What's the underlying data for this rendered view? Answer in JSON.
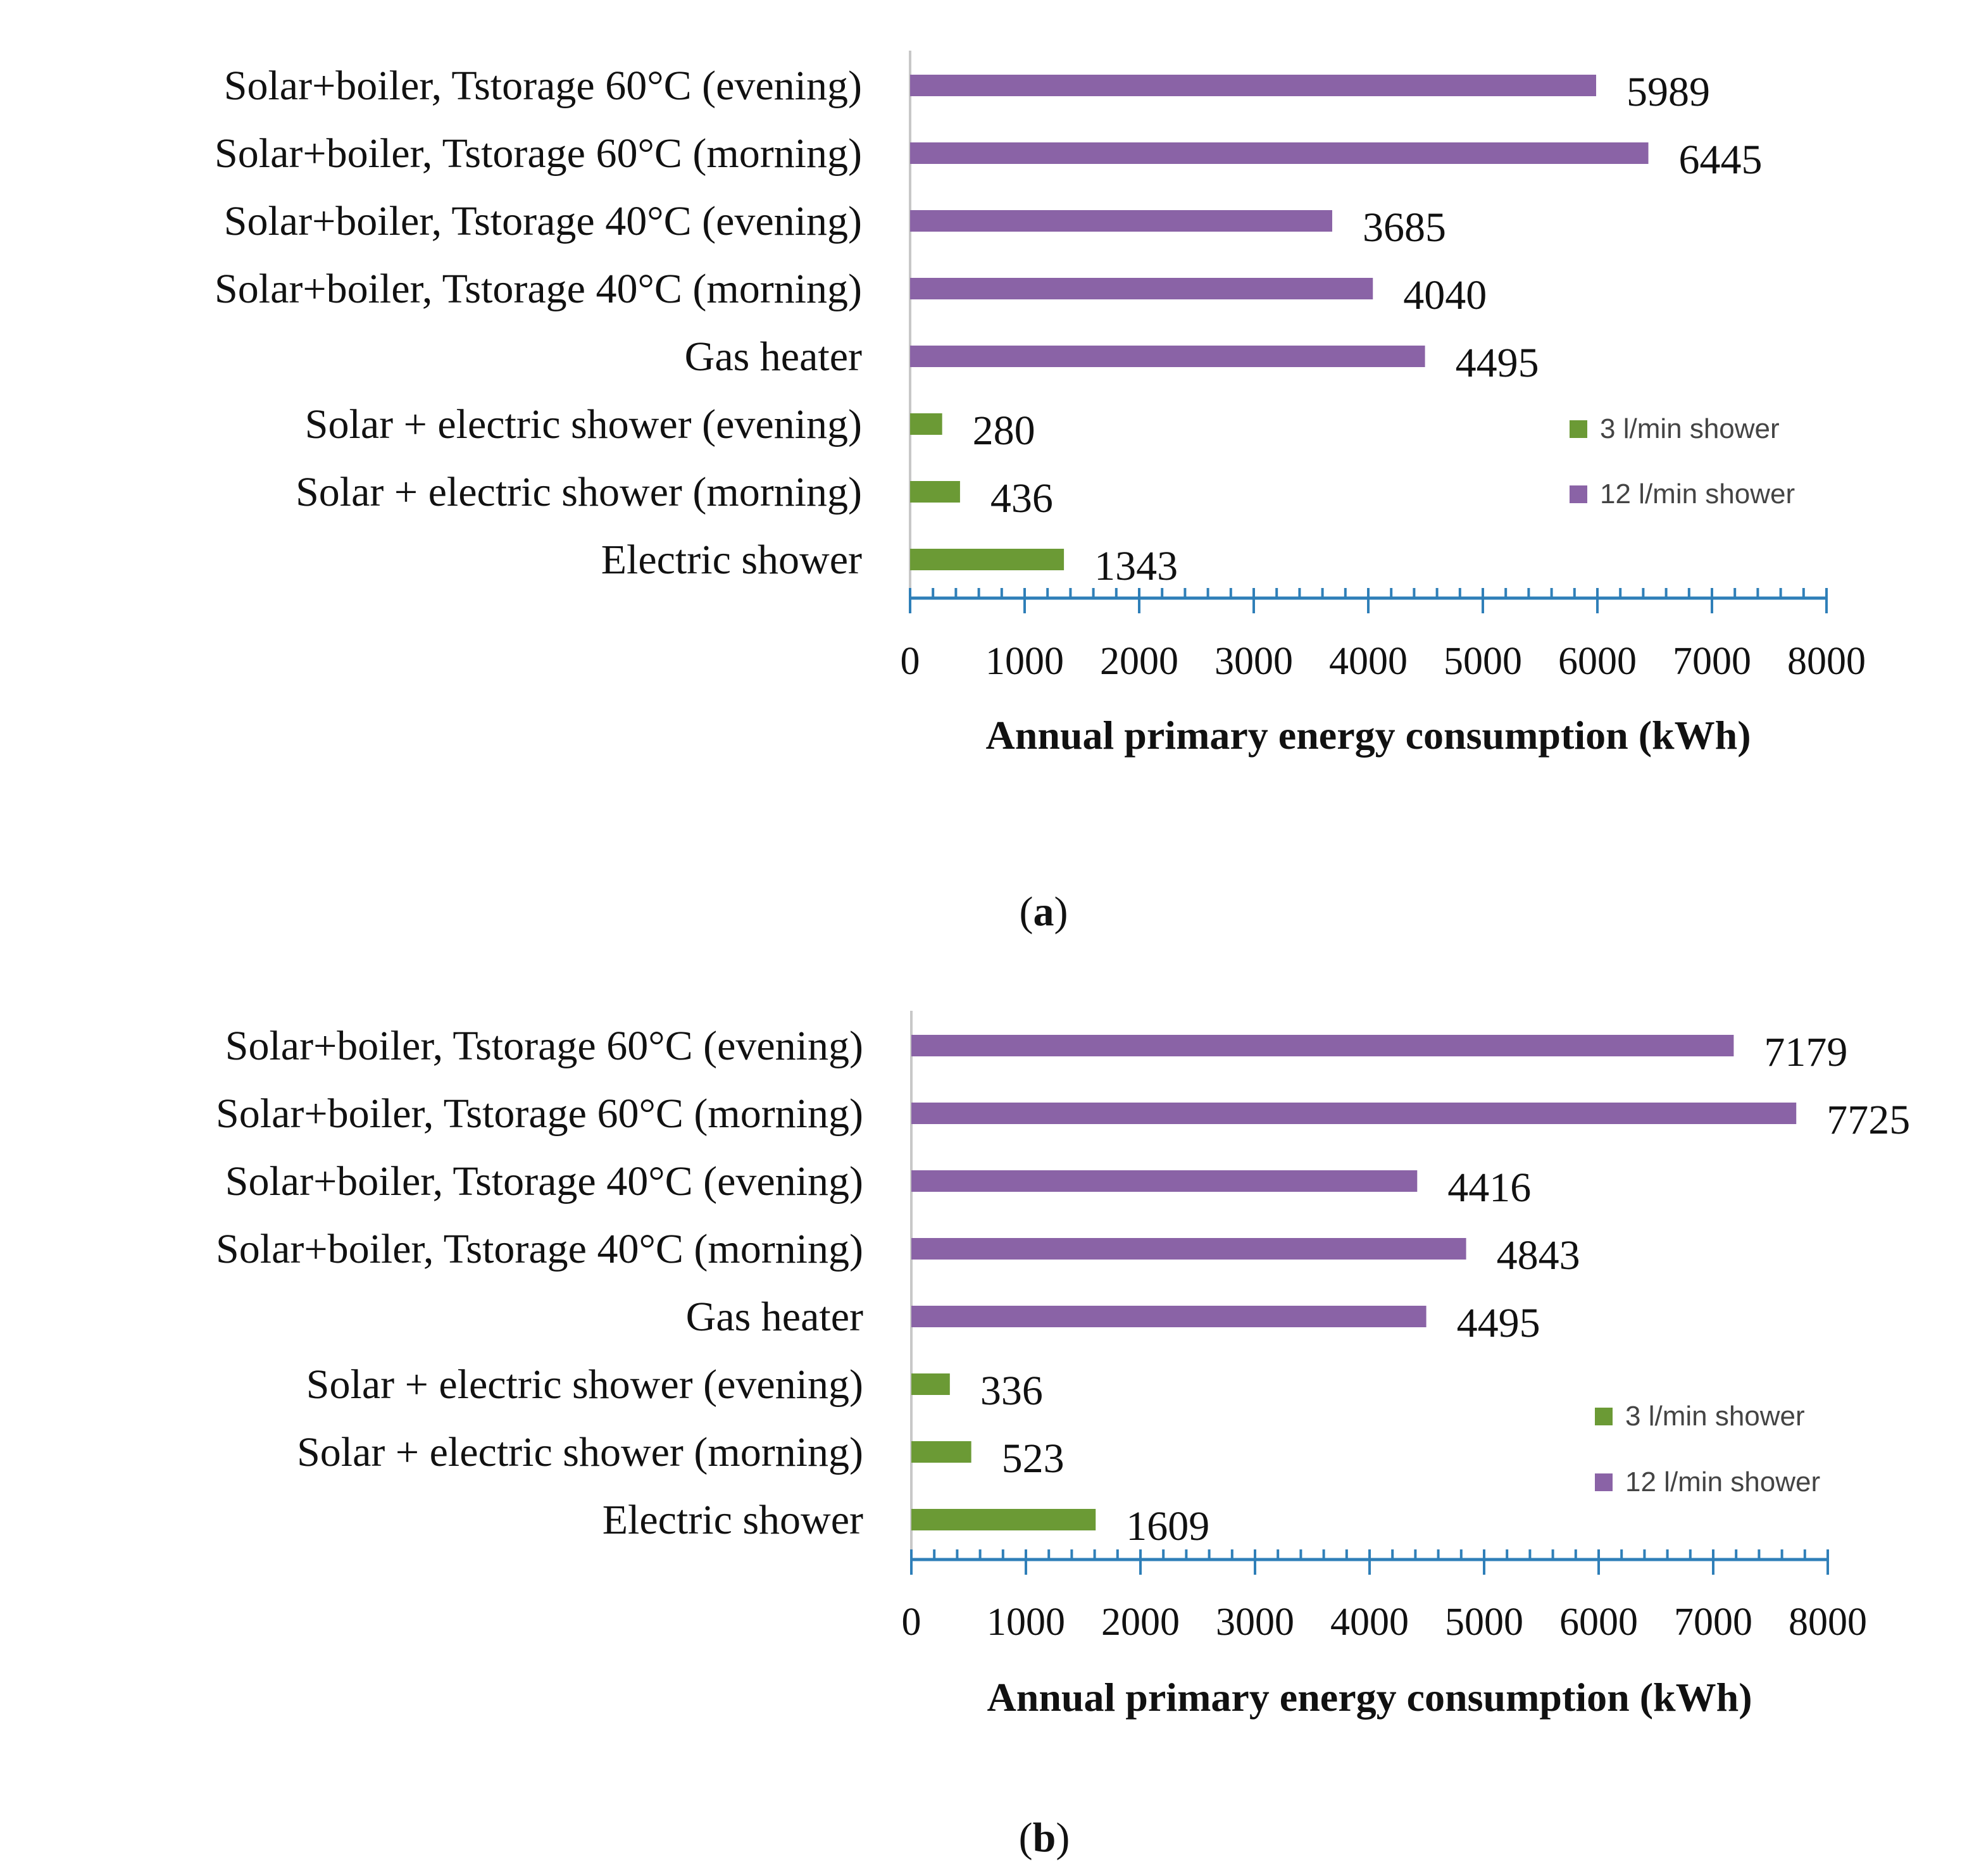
{
  "colors": {
    "green": "#6B9A35",
    "purple": "#8A63A6",
    "axis": "#2F7FB8",
    "baseline": "#C8C8C8"
  },
  "chart_data": [
    {
      "type": "bar",
      "orientation": "horizontal",
      "panel_label": "a",
      "xlabel": "Annual primary energy consumption (kWh)",
      "xlim": [
        0,
        8000
      ],
      "xticks": [
        "0",
        "1000",
        "2000",
        "3000",
        "4000",
        "5000",
        "6000",
        "7000",
        "8000"
      ],
      "legend": {
        "position": "right",
        "entries": [
          "3 l/min shower",
          "12 l/min shower"
        ]
      },
      "bars": [
        {
          "label": "Solar+boiler, Tstorage 60°C (evening)",
          "value": 5989,
          "series": "12 l/min shower"
        },
        {
          "label": "Solar+boiler, Tstorage 60°C (morning)",
          "value": 6445,
          "series": "12 l/min shower"
        },
        {
          "label": "Solar+boiler, Tstorage 40°C (evening)",
          "value": 3685,
          "series": "12 l/min shower"
        },
        {
          "label": "Solar+boiler, Tstorage 40°C (morning)",
          "value": 4040,
          "series": "12 l/min shower"
        },
        {
          "label": "Gas heater",
          "value": 4495,
          "series": "12 l/min shower"
        },
        {
          "label": "Solar + electric shower (evening)",
          "value": 280,
          "series": "3 l/min shower"
        },
        {
          "label": "Solar + electric shower (morning)",
          "value": 436,
          "series": "3 l/min shower"
        },
        {
          "label": "Electric shower",
          "value": 1343,
          "series": "3 l/min shower"
        }
      ]
    },
    {
      "type": "bar",
      "orientation": "horizontal",
      "panel_label": "b",
      "xlabel": "Annual primary energy consumption (kWh)",
      "xlim": [
        0,
        8000
      ],
      "xticks": [
        "0",
        "1000",
        "2000",
        "3000",
        "4000",
        "5000",
        "6000",
        "7000",
        "8000"
      ],
      "legend": {
        "position": "right",
        "entries": [
          "3 l/min shower",
          "12 l/min shower"
        ]
      },
      "bars": [
        {
          "label": "Solar+boiler, Tstorage 60°C (evening)",
          "value": 7179,
          "series": "12 l/min shower"
        },
        {
          "label": "Solar+boiler, Tstorage 60°C (morning)",
          "value": 7725,
          "series": "12 l/min shower"
        },
        {
          "label": "Solar+boiler, Tstorage 40°C (evening)",
          "value": 4416,
          "series": "12 l/min shower"
        },
        {
          "label": "Solar+boiler, Tstorage 40°C (morning)",
          "value": 4843,
          "series": "12 l/min shower"
        },
        {
          "label": "Gas heater",
          "value": 4495,
          "series": "12 l/min shower"
        },
        {
          "label": "Solar + electric shower (evening)",
          "value": 336,
          "series": "3 l/min shower"
        },
        {
          "label": "Solar + electric shower (morning)",
          "value": 523,
          "series": "3 l/min shower"
        },
        {
          "label": "Electric shower",
          "value": 1609,
          "series": "3 l/min shower"
        }
      ]
    }
  ]
}
